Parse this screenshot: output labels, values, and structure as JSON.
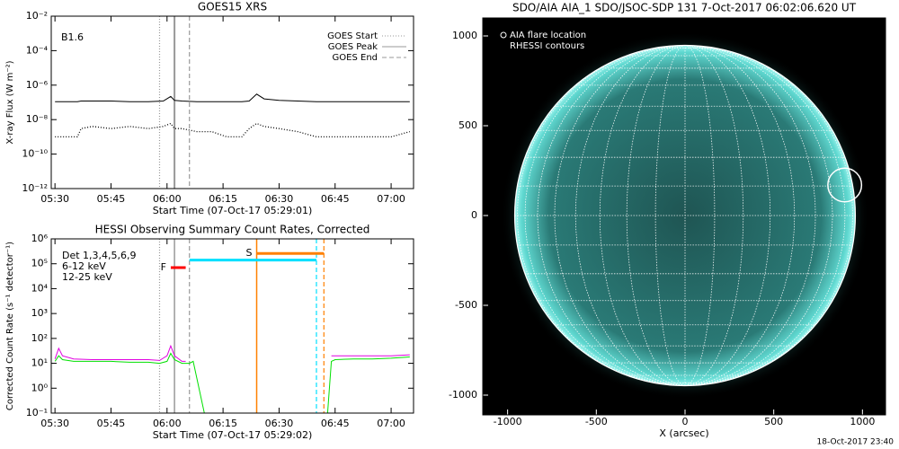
{
  "chart_data": [
    {
      "type": "line",
      "title": "GOES15 XRS",
      "xlabel": "Start Time (07-Oct-17 05:29:01)",
      "ylabel": "X-ray Flux (W m⁻²)",
      "annotation": "B1.6",
      "log_y": true,
      "x": [
        "05:30",
        "05:33",
        "05:36",
        "05:37",
        "05:40",
        "05:45",
        "05:50",
        "05:55",
        "05:59",
        "06:01",
        "06:02",
        "06:04",
        "06:08",
        "06:12",
        "06:16",
        "06:20",
        "06:22",
        "06:24",
        "06:26",
        "06:30",
        "06:35",
        "06:40",
        "06:45",
        "06:50",
        "06:55",
        "07:00",
        "07:05"
      ],
      "series": [
        {
          "color": "#000000",
          "style": "solid",
          "values": [
            1.1e-07,
            1.1e-07,
            1.1e-07,
            1.2e-07,
            1.2e-07,
            1.2e-07,
            1.1e-07,
            1.1e-07,
            1.2e-07,
            2.2e-07,
            1.3e-07,
            1.2e-07,
            1.1e-07,
            1.1e-07,
            1.1e-07,
            1.1e-07,
            1.2e-07,
            3e-07,
            1.6e-07,
            1.3e-07,
            1.2e-07,
            1.1e-07,
            1.1e-07,
            1.1e-07,
            1.1e-07,
            1.1e-07,
            1.1e-07
          ]
        },
        {
          "color": "#000000",
          "style": "dotted",
          "values": [
            1e-09,
            1e-09,
            1e-09,
            3e-09,
            4e-09,
            3e-09,
            4e-09,
            3e-09,
            4e-09,
            6e-09,
            3e-09,
            3e-09,
            2e-09,
            2e-09,
            1e-09,
            1e-09,
            3e-09,
            6e-09,
            4e-09,
            3e-09,
            2e-09,
            1e-09,
            1e-09,
            1e-09,
            1e-09,
            1e-09,
            2e-09
          ]
        }
      ],
      "markers": [
        {
          "name": "GOES Start",
          "x": "05:58",
          "style": "dotted",
          "color": "#999999"
        },
        {
          "name": "GOES Peak",
          "x": "06:02",
          "style": "solid",
          "color": "#999999"
        },
        {
          "name": "GOES End",
          "x": "06:06",
          "style": "dashed",
          "color": "#999999"
        }
      ],
      "xlim": [
        "05:29",
        "07:06"
      ],
      "xticks": [
        "05:30",
        "05:45",
        "06:00",
        "06:15",
        "06:30",
        "06:45",
        "07:00"
      ],
      "ylim": [
        1e-12,
        0.01
      ],
      "yticks": [
        {
          "value": 1e-12,
          "label": "10⁻¹²"
        },
        {
          "value": 1e-10,
          "label": "10⁻¹⁰"
        },
        {
          "value": 1e-08,
          "label": "10⁻⁸"
        },
        {
          "value": 1e-06,
          "label": "10⁻⁶"
        },
        {
          "value": 0.0001,
          "label": "10⁻⁴"
        },
        {
          "value": 0.01,
          "label": "10⁻²"
        }
      ]
    },
    {
      "type": "line",
      "title": "HESSI Observing Summary Count Rates, Corrected",
      "xlabel": "Start Time (07-Oct-17 05:29:02)",
      "ylabel": "Corrected Count Rate (s⁻¹ detector⁻¹)",
      "legend_title": "Det 1,3,4,5,6,9",
      "log_y": true,
      "x": [
        "05:30",
        "05:31",
        "05:32",
        "05:35",
        "05:40",
        "05:45",
        "05:50",
        "05:55",
        "05:58",
        "06:00",
        "06:01",
        "06:02",
        "06:04",
        "06:05",
        "06:06",
        "06:07",
        "06:10",
        "06:43",
        "06:44",
        "06:45",
        "06:50",
        "06:55",
        "07:00",
        "07:05"
      ],
      "series": [
        {
          "name": "6-12 keV",
          "color": "#e000e0",
          "values": [
            15,
            40,
            20,
            15,
            14,
            14,
            14,
            14,
            13,
            20,
            50,
            20,
            12,
            12,
            null,
            null,
            null,
            null,
            20,
            20,
            20,
            20,
            20,
            22
          ]
        },
        {
          "name": "12-25 keV",
          "color": "#00e000",
          "values": [
            12,
            20,
            14,
            12,
            12,
            12,
            11,
            11,
            10,
            12,
            25,
            14,
            10,
            10,
            10,
            12,
            0.1,
            0.1,
            12,
            14,
            15,
            15,
            16,
            18
          ]
        }
      ],
      "intervals": [
        {
          "label": "F",
          "color": "#ff0000",
          "x": [
            "06:01",
            "06:05"
          ],
          "y": 70000
        },
        {
          "label": "S",
          "color": "#ff8000",
          "x": [
            "06:24",
            "06:42"
          ],
          "y": 260000
        },
        {
          "color": "#00e0ff",
          "x": [
            "06:06",
            "06:40"
          ],
          "y": 140000
        }
      ],
      "vlines": [
        {
          "x": "05:58",
          "style": "dotted",
          "color": "#999999"
        },
        {
          "x": "06:02",
          "style": "solid",
          "color": "#999999"
        },
        {
          "x": "06:06",
          "style": "dashed",
          "color": "#999999"
        },
        {
          "x": "06:24",
          "style": "solid",
          "color": "#ff8000"
        },
        {
          "x": "06:40",
          "style": "dashed",
          "color": "#00e0ff"
        },
        {
          "x": "06:42",
          "style": "dashed",
          "color": "#ff8000"
        }
      ],
      "xlim": [
        "05:29",
        "07:06"
      ],
      "xticks": [
        "05:30",
        "05:45",
        "06:00",
        "06:15",
        "06:30",
        "06:45",
        "07:00"
      ],
      "ylim": [
        0.1,
        1000000
      ],
      "yticks": [
        {
          "value": 0.1,
          "label": "10⁻¹"
        },
        {
          "value": 1,
          "label": "10⁰"
        },
        {
          "value": 10,
          "label": "10¹"
        },
        {
          "value": 100,
          "label": "10²"
        },
        {
          "value": 1000,
          "label": "10³"
        },
        {
          "value": 10000,
          "label": "10⁴"
        },
        {
          "value": 100000,
          "label": "10⁵"
        },
        {
          "value": 1000000,
          "label": "10⁶"
        }
      ]
    },
    {
      "type": "image",
      "title": "SDO/AIA AIA_1 SDO/JSOC-SDP 131  7-Oct-2017 06:02:06.620 UT",
      "legend": [
        "AIA flare location",
        "RHESSI contours"
      ],
      "xlabel": "X (arcsec)",
      "solar_radius": 960,
      "flare": {
        "x": 900,
        "y": 170,
        "r": 95
      },
      "xlim": [
        -1140,
        1130
      ],
      "xticks": [
        -1000,
        -500,
        0,
        500,
        1000
      ],
      "ylim": [
        -1110,
        1100
      ],
      "yticks": [
        -1000,
        -500,
        0,
        500,
        1000
      ]
    }
  ],
  "footer": "18-Oct-2017 23:40"
}
